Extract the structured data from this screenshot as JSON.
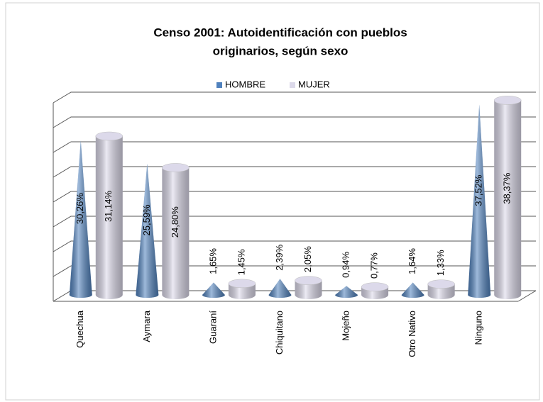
{
  "chart_data": {
    "type": "bar",
    "title": [
      "Censo 2001: Autoidentificación con pueblos",
      "originarios, según sexo"
    ],
    "categories": [
      "Quechua",
      "Aymara",
      "Guaraní",
      "Chiquitano",
      "Mojeño",
      "Otro Nativo",
      "Ninguno"
    ],
    "series": [
      {
        "name": "HOMBRE",
        "color": "#4f81bd",
        "shape": "cone",
        "values": [
          30.26,
          25.59,
          1.65,
          2.39,
          0.94,
          1.64,
          37.52
        ],
        "value_labels": [
          "30,26%",
          "25,59%",
          "1,65%",
          "2,39%",
          "0,94%",
          "1,64%",
          "37,52%"
        ]
      },
      {
        "name": "MUJER",
        "color": "#dcd9ea",
        "shape": "cylinder",
        "values": [
          31.14,
          24.8,
          1.45,
          2.05,
          0.77,
          1.33,
          38.37
        ],
        "value_labels": [
          "31,14%",
          "24,80%",
          "1,45%",
          "2,05%",
          "0,77%",
          "1,33%",
          "38,37%"
        ]
      }
    ],
    "ylim": [
      0,
      40
    ],
    "yticks": [
      0,
      5,
      10,
      15,
      20,
      25,
      30,
      35,
      40
    ],
    "grid": true,
    "legend": "top"
  }
}
